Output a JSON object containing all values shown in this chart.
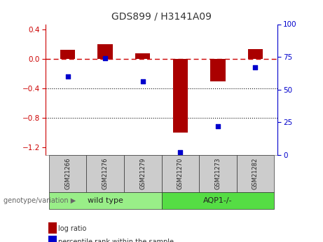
{
  "title": "GDS899 / H3141A09",
  "categories": [
    "GSM21266",
    "GSM21276",
    "GSM21279",
    "GSM21270",
    "GSM21273",
    "GSM21282"
  ],
  "log_ratio": [
    0.12,
    0.2,
    0.08,
    -1.0,
    -0.3,
    0.13
  ],
  "percentile_rank": [
    60,
    74,
    56,
    2,
    22,
    67
  ],
  "bar_color": "#aa0000",
  "dot_color": "#0000cc",
  "ylim_left": [
    -1.3,
    0.47
  ],
  "ylim_right": [
    0,
    100
  ],
  "yticks_left": [
    0.4,
    0.0,
    -0.4,
    -0.8,
    -1.2
  ],
  "yticks_right": [
    100,
    75,
    50,
    25,
    0
  ],
  "groups": [
    {
      "label": "wild type",
      "indices": [
        0,
        1,
        2
      ],
      "color": "#99ee88"
    },
    {
      "label": "AQP1-/-",
      "indices": [
        3,
        4,
        5
      ],
      "color": "#55dd44"
    }
  ],
  "group_label": "genotype/variation",
  "legend_items": [
    {
      "label": "log ratio",
      "color": "#aa0000"
    },
    {
      "label": "percentile rank within the sample",
      "color": "#0000cc"
    }
  ],
  "zero_line_color": "#cc0000",
  "dotted_line_color": "#111111",
  "background_color": "#ffffff"
}
